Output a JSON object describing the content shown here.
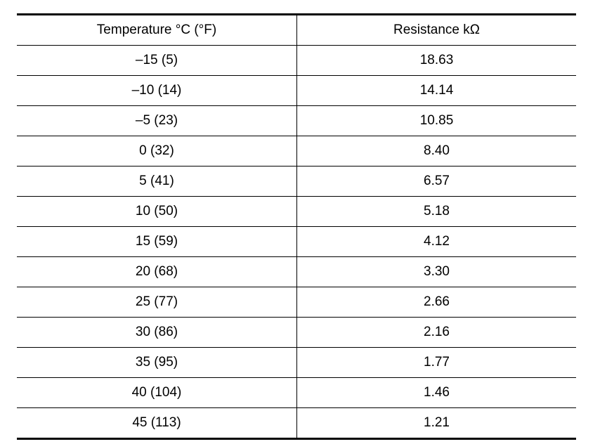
{
  "table": {
    "header": [
      "Temperature °C (°F)",
      "Resistance kΩ"
    ],
    "rows": [
      [
        "–15 (5)",
        "18.63"
      ],
      [
        "–10 (14)",
        "14.14"
      ],
      [
        "–5 (23)",
        "10.85"
      ],
      [
        "0 (32)",
        "8.40"
      ],
      [
        "5 (41)",
        "6.57"
      ],
      [
        "10 (50)",
        "5.18"
      ],
      [
        "15 (59)",
        "4.12"
      ],
      [
        "20 (68)",
        "3.30"
      ],
      [
        "25 (77)",
        "2.66"
      ],
      [
        "30 (86)",
        "2.16"
      ],
      [
        "35 (95)",
        "1.77"
      ],
      [
        "40 (104)",
        "1.46"
      ],
      [
        "45 (113)",
        "1.21"
      ]
    ]
  }
}
